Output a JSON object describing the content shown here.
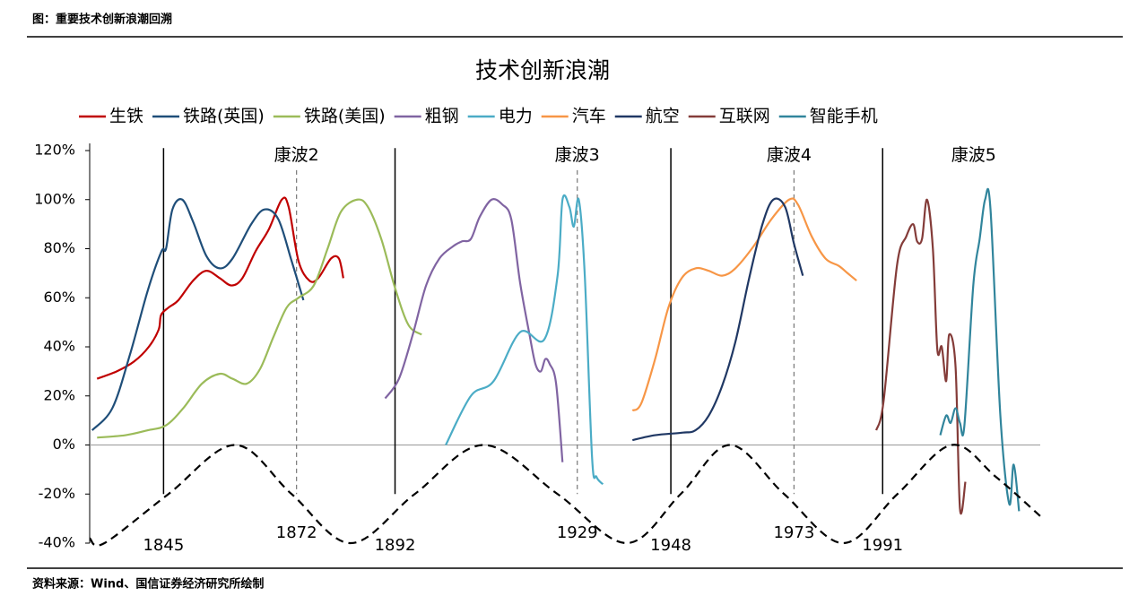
{
  "header": "图：重要技术创新浪潮回溯",
  "source": "资料来源：Wind、国信证券经济研究所绘制",
  "chart_data": {
    "type": "line",
    "title": "技术创新浪潮",
    "xlim": [
      1830,
      2023
    ],
    "ylim": [
      -40,
      120
    ],
    "yticks": [
      {
        "value": 120,
        "label": "120%"
      },
      {
        "value": 100,
        "label": "100%"
      },
      {
        "value": 80,
        "label": "80%"
      },
      {
        "value": 60,
        "label": "60%"
      },
      {
        "value": 40,
        "label": "40%"
      },
      {
        "value": 20,
        "label": "20%"
      },
      {
        "value": 0,
        "label": "0%"
      },
      {
        "value": -20,
        "label": "-20%"
      },
      {
        "value": -40,
        "label": "-40%"
      }
    ],
    "grid": false,
    "legend": "top",
    "vlines": [
      {
        "value": 1845,
        "label": "1845",
        "dashed": false
      },
      {
        "value": 1872,
        "label": "1872",
        "dashed": true
      },
      {
        "value": 1892,
        "label": "1892",
        "dashed": false
      },
      {
        "value": 1929,
        "label": "1929",
        "dashed": true
      },
      {
        "value": 1948,
        "label": "1948",
        "dashed": false
      },
      {
        "value": 1973,
        "label": "1973",
        "dashed": true
      },
      {
        "value": 1991,
        "label": "1991",
        "dashed": false
      }
    ],
    "annotations": [
      {
        "text": "康波2",
        "x": 1872,
        "y": 118
      },
      {
        "text": "康波3",
        "x": 1929,
        "y": 118
      },
      {
        "text": "康波4",
        "x": 1972,
        "y": 118
      },
      {
        "text": "康波5",
        "x": 2009.5,
        "y": 118
      }
    ],
    "series": [
      {
        "name": "生铁",
        "color": "#c00000",
        "x": [
          1831.5,
          1835.5,
          1839,
          1842,
          1844,
          1844.5,
          1846,
          1848,
          1851,
          1853.7,
          1856.4,
          1858.8,
          1861,
          1863.7,
          1866.4,
          1869,
          1870.4,
          1872.4,
          1874.6,
          1876.4,
          1879,
          1880.6,
          1881.5
        ],
        "values": [
          27,
          30,
          34,
          40,
          47,
          53,
          56,
          59,
          67,
          71,
          68,
          65,
          68,
          79,
          88,
          100,
          97,
          75,
          67,
          68,
          76,
          76,
          68
        ]
      },
      {
        "name": "铁路(英国)",
        "color": "#1f4e79",
        "x": [
          1830.5,
          1834.6,
          1838.2,
          1841.8,
          1844.6,
          1845.5,
          1846.8,
          1848.8,
          1851,
          1853.7,
          1856.4,
          1859,
          1862.8,
          1865.5,
          1868.3,
          1871,
          1873.4
        ],
        "values": [
          6,
          15,
          37,
          63,
          79,
          80,
          96,
          100,
          91,
          77,
          72,
          76,
          90,
          96,
          92,
          75,
          59
        ]
      },
      {
        "name": "铁路(美国)",
        "color": "#9bbb59",
        "x": [
          1831.5,
          1837.3,
          1841.8,
          1845.5,
          1849,
          1852.8,
          1856.4,
          1859,
          1861.9,
          1864.6,
          1867.3,
          1870,
          1872.4,
          1875.5,
          1878.3,
          1881,
          1884.3,
          1886.5,
          1889.2,
          1892,
          1894.7,
          1897.4
        ],
        "values": [
          3,
          4,
          6,
          8,
          15,
          25,
          29,
          27,
          25,
          31,
          44,
          56,
          60,
          65,
          80,
          95,
          100,
          97,
          84,
          64,
          49,
          45
        ]
      },
      {
        "name": "粗钢",
        "color": "#8064a2",
        "x": [
          1890,
          1892.8,
          1895.6,
          1898.3,
          1901,
          1903.8,
          1905.6,
          1907.4,
          1909.2,
          1911.6,
          1913.8,
          1915.6,
          1917.4,
          1919.3,
          1920.5,
          1921.6,
          1922.5,
          1923.4,
          1924.7,
          1926
        ],
        "values": [
          19,
          27,
          45,
          65,
          76,
          81,
          83,
          84,
          93,
          100,
          98,
          92,
          66,
          45,
          33,
          30,
          35,
          33,
          25,
          -7
        ]
      },
      {
        "name": "电力",
        "color": "#4bacc6",
        "x": [
          1902.3,
          1907.4,
          1912,
          1917.4,
          1922.3,
          1925,
          1926,
          1927.4,
          1928.3,
          1929.3,
          1930.5,
          1932,
          1932.9,
          1934.2
        ],
        "values": [
          0,
          20,
          26,
          46,
          43,
          69,
          100,
          97,
          89,
          100,
          70,
          -5,
          -13,
          -16
        ]
      },
      {
        "name": "汽车",
        "color": "#f79646",
        "x": [
          1940.2,
          1942,
          1944.8,
          1947.5,
          1950.2,
          1953,
          1955.7,
          1958.4,
          1961.1,
          1964.8,
          1968.4,
          1972,
          1973.8,
          1976.6,
          1979.4,
          1982.1,
          1983.9,
          1985.7
        ],
        "values": [
          14,
          17,
          35,
          56,
          68,
          72,
          71,
          69,
          72,
          81,
          92,
          100,
          98,
          85,
          76,
          73,
          70,
          67
        ]
      },
      {
        "name": "航空",
        "color": "#203864",
        "x": [
          1940.2,
          1944.8,
          1950.2,
          1953,
          1955.7,
          1958.4,
          1961.1,
          1963.9,
          1966.6,
          1968.8,
          1971.2,
          1973,
          1974.8
        ],
        "values": [
          2,
          4,
          5,
          6,
          12,
          24,
          42,
          68,
          90,
          100,
          97,
          82,
          69
        ]
      },
      {
        "name": "互联网",
        "color": "#843c39",
        "x": [
          1989.7,
          1991.2,
          1993.9,
          1995.8,
          1997.2,
          1998,
          1999,
          2000,
          2001.2,
          2002.1,
          2003,
          2003.9,
          2004.5,
          2005.8,
          2006.7,
          2007.8
        ],
        "values": [
          6,
          18,
          73,
          85,
          90,
          83,
          84,
          100,
          80,
          39,
          40,
          26,
          45,
          32,
          -26,
          -15
        ]
      },
      {
        "name": "智能手机",
        "color": "#31859c",
        "x": [
          2002.7,
          2003.9,
          2004.8,
          2005.8,
          2006.7,
          2007.6,
          2009.4,
          2010.7,
          2011.8,
          2012.9,
          2014.9,
          2016.7,
          2017.6,
          2018.7
        ],
        "values": [
          4,
          12,
          9,
          15,
          9,
          8,
          65,
          84,
          100,
          96,
          12,
          -24,
          -8,
          -27
        ]
      },
      {
        "color": "#000000",
        "dashed": true,
        "x": [
          1830,
          1833,
          1846,
          1859.5,
          1871,
          1883,
          1896,
          1910,
          1925,
          1939,
          1950,
          1960,
          1971,
          1983,
          1994,
          2005,
          2014,
          2023
        ],
        "values": [
          -38,
          -40,
          -20,
          0,
          -20,
          -40,
          -20,
          0,
          -20,
          -40,
          -20,
          0,
          -20,
          -40,
          -20,
          0,
          -13,
          -29
        ]
      }
    ]
  }
}
